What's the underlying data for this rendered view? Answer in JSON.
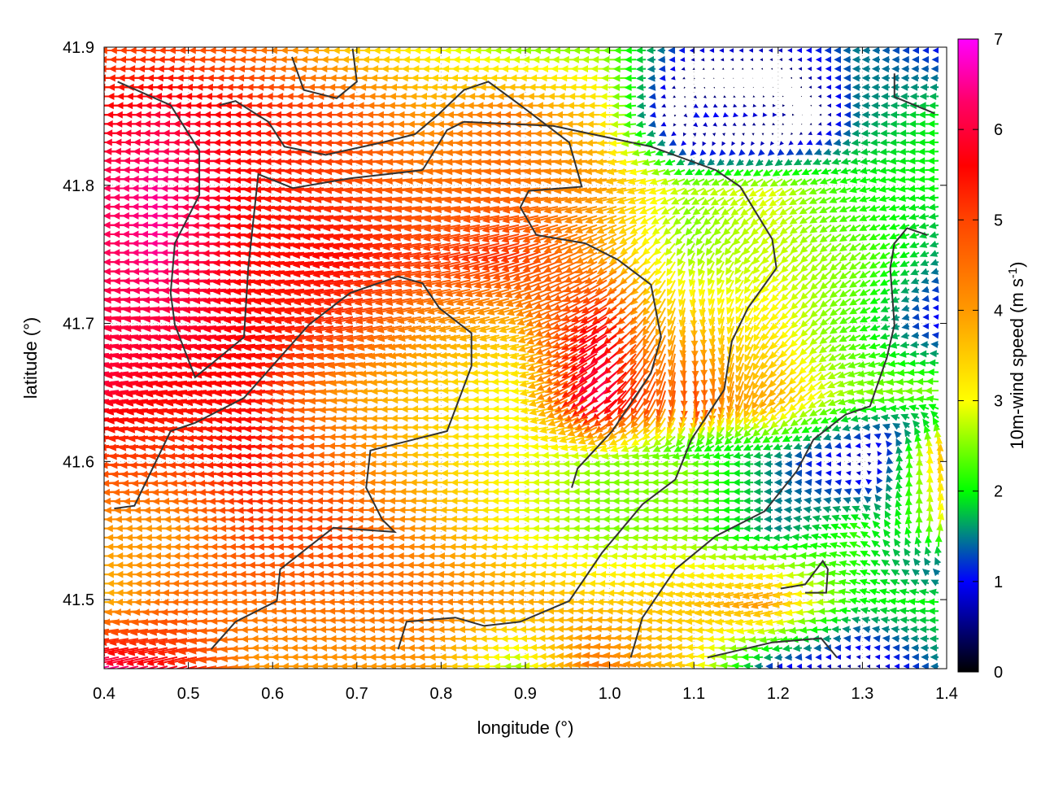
{
  "chart_data": {
    "type": "vector-field",
    "xlabel": "longitude (°)",
    "ylabel": "latitude (°)",
    "colorbar_label": "10m-wind speed (m s",
    "colorbar_label_sup": "-1",
    "colorbar_label_end": ")",
    "xlim": [
      0.4,
      1.4
    ],
    "ylim": [
      41.45,
      41.9
    ],
    "clim": [
      0,
      7
    ],
    "grid": true,
    "x_ticks": [
      "0.4",
      "0.5",
      "0.6",
      "0.7",
      "0.8",
      "0.9",
      "1.0",
      "1.1",
      "1.2",
      "1.3",
      "1.4"
    ],
    "y_ticks": [
      "41.5",
      "41.6",
      "41.7",
      "41.8",
      "41.9"
    ],
    "c_ticks": [
      "0",
      "1",
      "2",
      "3",
      "4",
      "5",
      "6",
      "7"
    ],
    "palette": [
      {
        "v": 0,
        "color": "#000000"
      },
      {
        "v": 1,
        "color": "#0000ff"
      },
      {
        "v": 1.5,
        "color": "#00808a"
      },
      {
        "v": 2,
        "color": "#00ff00"
      },
      {
        "v": 3,
        "color": "#ffff00"
      },
      {
        "v": 4,
        "color": "#ff9900"
      },
      {
        "v": 5,
        "color": "#ff4400"
      },
      {
        "v": 5.6,
        "color": "#ff0000"
      },
      {
        "v": 6.3,
        "color": "#ff0066"
      },
      {
        "v": 7,
        "color": "#ff00ff"
      }
    ],
    "wind_grid": {
      "lon": [
        0.4,
        0.5,
        0.6,
        0.7,
        0.8,
        0.9,
        1.0,
        1.1,
        1.2,
        1.3,
        1.4
      ],
      "lat": [
        41.9,
        41.85,
        41.8,
        41.75,
        41.7,
        41.65,
        41.6,
        41.55,
        41.5,
        41.45
      ],
      "u": [
        [
          -5,
          -5,
          -4.5,
          -3.5,
          -3,
          -2.5,
          -2.5,
          -1,
          -0.8,
          -1.5,
          -1
        ],
        [
          -5.5,
          -6,
          -5.5,
          -5,
          -4,
          -4.5,
          -3.5,
          1,
          0.8,
          -1.5,
          -2
        ],
        [
          -6,
          -6.5,
          -5.5,
          -5,
          -4.5,
          -4.5,
          -4,
          -2.5,
          -2.5,
          -2,
          -2
        ],
        [
          -6,
          -6.5,
          -5.5,
          -5.5,
          -5,
          -5,
          -3.5,
          -1,
          -2,
          -2,
          -1.5
        ],
        [
          -6,
          -6,
          -5.5,
          -5,
          -4,
          -3.5,
          -5,
          0,
          -2,
          -2,
          -0.8
        ],
        [
          -6,
          -5.5,
          -5.5,
          -4,
          -3.5,
          -3,
          -5,
          0.5,
          -2.5,
          -2.5,
          -2.5
        ],
        [
          -5,
          -5,
          -5.5,
          -4.5,
          -3.5,
          -3,
          -2.5,
          -2.5,
          -1.5,
          -0.5,
          0.5
        ],
        [
          -4,
          -4,
          -5,
          -5,
          -4,
          -3,
          -2.5,
          -2.5,
          -1.5,
          -2,
          1
        ],
        [
          -3.5,
          -4.5,
          -4.5,
          -4.5,
          -4.5,
          -4,
          -3.5,
          -3.5,
          -4,
          -2,
          -2
        ],
        [
          -6.5,
          -5.5,
          -4,
          -4,
          -4,
          -2.5,
          -4.5,
          -3.5,
          -1,
          -0.5,
          -1.5
        ]
      ],
      "v": [
        [
          0,
          0,
          0,
          0,
          0,
          0,
          0,
          0,
          0,
          0,
          0
        ],
        [
          0,
          0,
          0,
          0,
          0,
          0,
          0,
          -0.5,
          0,
          0,
          0
        ],
        [
          0,
          0,
          -0.3,
          -0.5,
          -0.5,
          -0.5,
          -0.5,
          -1,
          -1.5,
          -0.5,
          0
        ],
        [
          0,
          0,
          -0.3,
          -0.8,
          -1,
          -1.5,
          -2,
          -2.5,
          -2,
          -1.5,
          -0.5
        ],
        [
          -0.5,
          -0.5,
          -0.8,
          -1,
          -0.8,
          -1,
          -3,
          -3.8,
          -2.5,
          -1,
          0.3
        ],
        [
          -0.8,
          -0.8,
          -0.5,
          -0.3,
          0,
          0,
          -4,
          -5,
          -3,
          -0.5,
          0
        ],
        [
          -0.3,
          -0.3,
          -0.3,
          0,
          0,
          0,
          0,
          0,
          0,
          0,
          4
        ],
        [
          0,
          0,
          0,
          0,
          0,
          0,
          0,
          0,
          0,
          1,
          3
        ],
        [
          0,
          0,
          0,
          0,
          0,
          0,
          0,
          -0.5,
          -1,
          0.5,
          0
        ],
        [
          -1.5,
          -1.5,
          0,
          0,
          0,
          0,
          0.5,
          0.5,
          0,
          0,
          0
        ]
      ]
    },
    "coastlines": [
      [
        [
          0.412,
          41.566
        ],
        [
          0.436,
          41.568
        ],
        [
          0.479,
          41.622
        ],
        [
          0.508,
          41.628
        ],
        [
          0.566,
          41.646
        ],
        [
          0.643,
          41.699
        ],
        [
          0.692,
          41.722
        ],
        [
          0.749,
          41.734
        ],
        [
          0.778,
          41.729
        ],
        [
          0.798,
          41.711
        ],
        [
          0.836,
          41.693
        ],
        [
          0.836,
          41.669
        ],
        [
          0.807,
          41.622
        ],
        [
          0.716,
          41.608
        ],
        [
          0.711,
          41.581
        ],
        [
          0.73,
          41.558
        ],
        [
          0.745,
          41.549
        ],
        [
          0.672,
          41.552
        ],
        [
          0.609,
          41.522
        ],
        [
          0.605,
          41.499
        ],
        [
          0.556,
          41.484
        ],
        [
          0.527,
          41.464
        ]
      ],
      [
        [
          0.778,
          41.811
        ],
        [
          0.807,
          41.84
        ],
        [
          0.827,
          41.846
        ],
        [
          0.933,
          41.843
        ],
        [
          1.049,
          41.828
        ],
        [
          1.126,
          41.811
        ],
        [
          1.155,
          41.799
        ],
        [
          1.193,
          41.761
        ],
        [
          1.198,
          41.74
        ],
        [
          1.164,
          41.711
        ],
        [
          1.145,
          41.687
        ],
        [
          1.136,
          41.652
        ],
        [
          1.097,
          41.616
        ],
        [
          1.078,
          41.587
        ],
        [
          1.039,
          41.569
        ],
        [
          0.991,
          41.534
        ],
        [
          0.971,
          41.516
        ],
        [
          0.952,
          41.499
        ],
        [
          0.894,
          41.484
        ],
        [
          0.851,
          41.481
        ],
        [
          0.817,
          41.487
        ],
        [
          0.759,
          41.484
        ],
        [
          0.749,
          41.464
        ]
      ],
      [
        [
          1.377,
          41.764
        ],
        [
          1.353,
          41.769
        ],
        [
          1.338,
          41.758
        ],
        [
          1.333,
          41.74
        ],
        [
          1.338,
          41.699
        ],
        [
          1.329,
          41.675
        ],
        [
          1.309,
          41.64
        ],
        [
          1.28,
          41.634
        ],
        [
          1.242,
          41.616
        ],
        [
          1.222,
          41.593
        ],
        [
          1.184,
          41.564
        ],
        [
          1.126,
          41.546
        ],
        [
          1.078,
          41.522
        ],
        [
          1.039,
          41.487
        ],
        [
          1.025,
          41.458
        ]
      ],
      [
        [
          0.416,
          41.875
        ],
        [
          0.479,
          41.858
        ],
        [
          0.513,
          41.825
        ],
        [
          0.513,
          41.793
        ],
        [
          0.484,
          41.758
        ],
        [
          0.479,
          41.722
        ],
        [
          0.484,
          41.699
        ],
        [
          0.508,
          41.661
        ],
        [
          0.566,
          41.69
        ],
        [
          0.571,
          41.74
        ],
        [
          0.583,
          41.808
        ],
        [
          0.624,
          41.798
        ],
        [
          0.692,
          41.805
        ],
        [
          0.778,
          41.811
        ]
      ],
      [
        [
          0.537,
          41.858
        ],
        [
          0.556,
          41.861
        ],
        [
          0.595,
          41.846
        ],
        [
          0.614,
          41.828
        ],
        [
          0.663,
          41.822
        ],
        [
          0.73,
          41.831
        ],
        [
          0.769,
          41.837
        ],
        [
          0.798,
          41.852
        ],
        [
          0.827,
          41.869
        ],
        [
          0.856,
          41.875
        ],
        [
          0.894,
          41.858
        ],
        [
          0.952,
          41.831
        ],
        [
          0.967,
          41.799
        ],
        [
          0.904,
          41.796
        ],
        [
          0.894,
          41.784
        ],
        [
          0.913,
          41.764
        ],
        [
          0.971,
          41.758
        ],
        [
          1.01,
          41.746
        ],
        [
          1.049,
          41.728
        ],
        [
          1.061,
          41.69
        ],
        [
          1.049,
          41.664
        ],
        [
          1.003,
          41.622
        ],
        [
          0.962,
          41.595
        ],
        [
          0.955,
          41.581
        ]
      ],
      [
        [
          0.623,
          41.893
        ],
        [
          0.637,
          41.869
        ],
        [
          0.676,
          41.863
        ],
        [
          0.7,
          41.875
        ],
        [
          0.695,
          41.899
        ]
      ],
      [
        [
          1.203,
          41.508
        ],
        [
          1.232,
          41.511
        ],
        [
          1.253,
          41.528
        ],
        [
          1.259,
          41.522
        ],
        [
          1.257,
          41.505
        ],
        [
          1.232,
          41.505
        ]
      ],
      [
        [
          1.116,
          41.458
        ],
        [
          1.193,
          41.469
        ],
        [
          1.251,
          41.472
        ],
        [
          1.27,
          41.458
        ]
      ],
      [
        [
          1.338,
          41.881
        ],
        [
          1.338,
          41.864
        ],
        [
          1.386,
          41.852
        ]
      ]
    ]
  }
}
